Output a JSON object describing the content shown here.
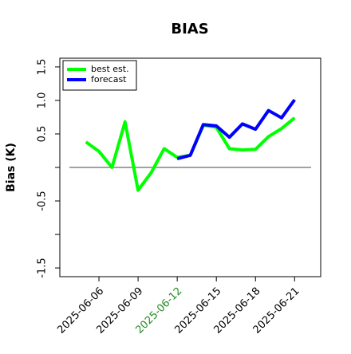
{
  "chart_data": {
    "type": "line",
    "title": "BIAS",
    "y_label": "Bias (K)",
    "x": [
      "2025-06-05",
      "2025-06-06",
      "2025-06-07",
      "2025-06-08",
      "2025-06-09",
      "2025-06-10",
      "2025-06-11",
      "2025-06-12",
      "2025-06-13",
      "2025-06-14",
      "2025-06-15",
      "2025-06-16",
      "2025-06-17",
      "2025-06-18",
      "2025-06-19",
      "2025-06-20",
      "2025-06-21"
    ],
    "series": [
      {
        "name": "best est.",
        "color": "#00ff00",
        "values": [
          0.38,
          0.24,
          0.0,
          0.68,
          -0.34,
          -0.08,
          0.28,
          0.15,
          0.18,
          0.63,
          0.6,
          0.28,
          0.26,
          0.27,
          0.46,
          0.58,
          0.74
        ]
      },
      {
        "name": "forecast",
        "color": "#0000ff",
        "values": [
          null,
          null,
          null,
          null,
          null,
          null,
          null,
          0.13,
          0.18,
          0.64,
          0.62,
          0.45,
          0.65,
          0.57,
          0.85,
          0.74,
          1.01
        ]
      }
    ],
    "xlim": [
      "2025-06-03",
      "2025-06-23"
    ],
    "xticks": [
      "2025-06-06",
      "2025-06-09",
      "2025-06-12",
      "2025-06-15",
      "2025-06-18",
      "2025-06-21"
    ],
    "xtick_label_colors": [
      "#000000",
      "#000000",
      "#228b22",
      "#000000",
      "#000000",
      "#000000"
    ],
    "ylim": [
      -1.63,
      1.63
    ],
    "yticks": [
      {
        "value": -1.5,
        "label": "-1.5"
      },
      {
        "value": -1,
        "label": null
      },
      -0.5,
      {
        "value": 0,
        "label": null
      },
      0.5,
      {
        "value": 1,
        "label": "1.0"
      },
      1.5
    ],
    "reference_line": 0,
    "legend": "topleft"
  }
}
